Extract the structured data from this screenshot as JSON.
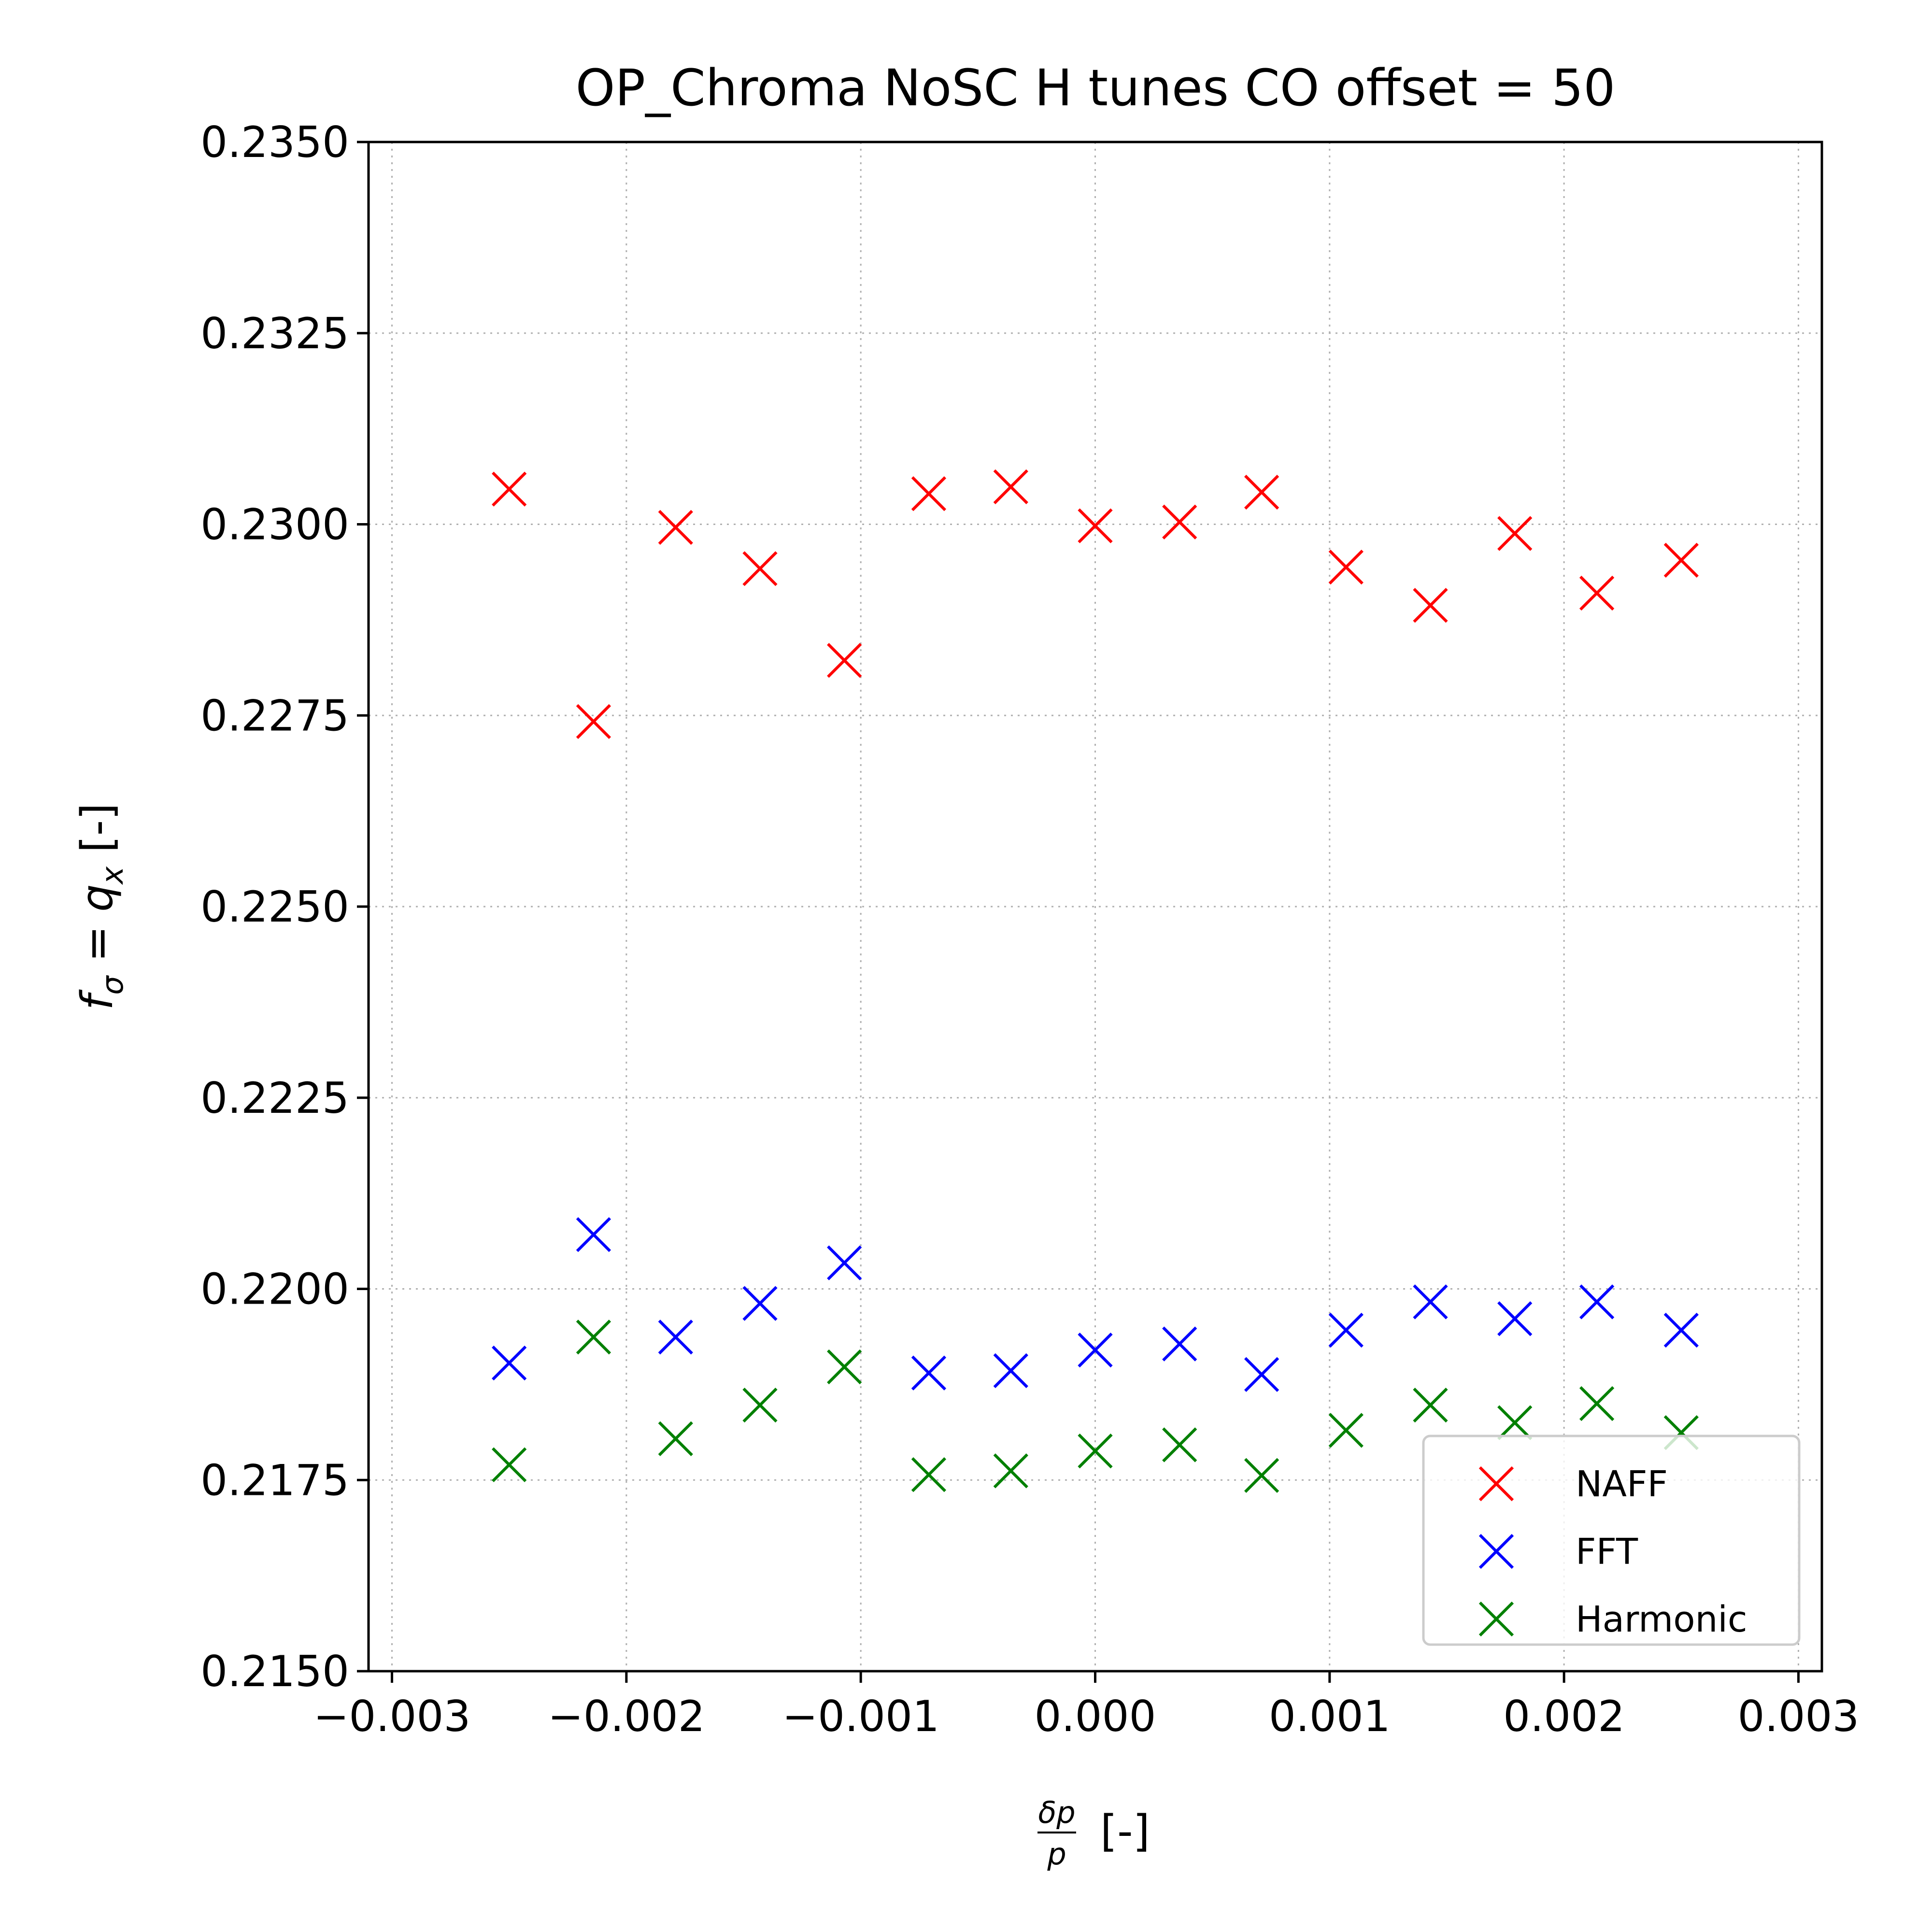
{
  "chart_data": {
    "type": "scatter",
    "title": "OP_Chroma NoSC H tunes CO offset = 50",
    "xlabel_numerator": "δp",
    "xlabel_denominator": "p",
    "xlabel_unit": "[-]",
    "ylabel_main": "f",
    "ylabel_sub": "σ",
    "ylabel_mid": " = q",
    "ylabel_sub2": "x",
    "ylabel_unit": " [-]",
    "xlim": [
      -0.0031,
      0.0031
    ],
    "ylim": [
      0.215,
      0.235
    ],
    "xticks": [
      -0.003,
      -0.002,
      -0.001,
      0.0,
      0.001,
      0.002,
      0.003
    ],
    "xtick_labels": [
      "−0.003",
      "−0.002",
      "−0.001",
      "0.000",
      "0.001",
      "0.002",
      "0.003"
    ],
    "yticks": [
      0.215,
      0.2175,
      0.22,
      0.2225,
      0.225,
      0.2275,
      0.23,
      0.2325,
      0.235
    ],
    "ytick_labels": [
      "0.2150",
      "0.2175",
      "0.2200",
      "0.2225",
      "0.2250",
      "0.2275",
      "0.2300",
      "0.2325",
      "0.2350"
    ],
    "grid": true,
    "legend_position": "lower-right",
    "marker": "x",
    "x": [
      -0.0025,
      -0.00214,
      -0.00179,
      -0.00143,
      -0.00107,
      -0.00071,
      -0.00036,
      0.0,
      0.00036,
      0.00071,
      0.00107,
      0.00143,
      0.00179,
      0.00214,
      0.0025
    ],
    "series": [
      {
        "name": "NAFF",
        "color": "#ff0000",
        "values": [
          0.23046,
          0.22742,
          0.22996,
          0.22942,
          0.22822,
          0.2304,
          0.23049,
          0.22998,
          0.23003,
          0.23042,
          0.22944,
          0.22894,
          0.22988,
          0.2291,
          0.22953
        ]
      },
      {
        "name": "FFT",
        "color": "#0000ff",
        "values": [
          0.21903,
          0.22071,
          0.21937,
          0.21981,
          0.22034,
          0.2189,
          0.21893,
          0.2192,
          0.21928,
          0.21888,
          0.21946,
          0.21983,
          0.21961,
          0.21983,
          0.21946
        ]
      },
      {
        "name": "Harmonic",
        "color": "#008000",
        "values": [
          0.2177,
          0.21937,
          0.21804,
          0.21848,
          0.21898,
          0.21757,
          0.21762,
          0.21788,
          0.21796,
          0.21756,
          0.21815,
          0.21848,
          0.21825,
          0.2185,
          0.21812
        ]
      }
    ]
  }
}
